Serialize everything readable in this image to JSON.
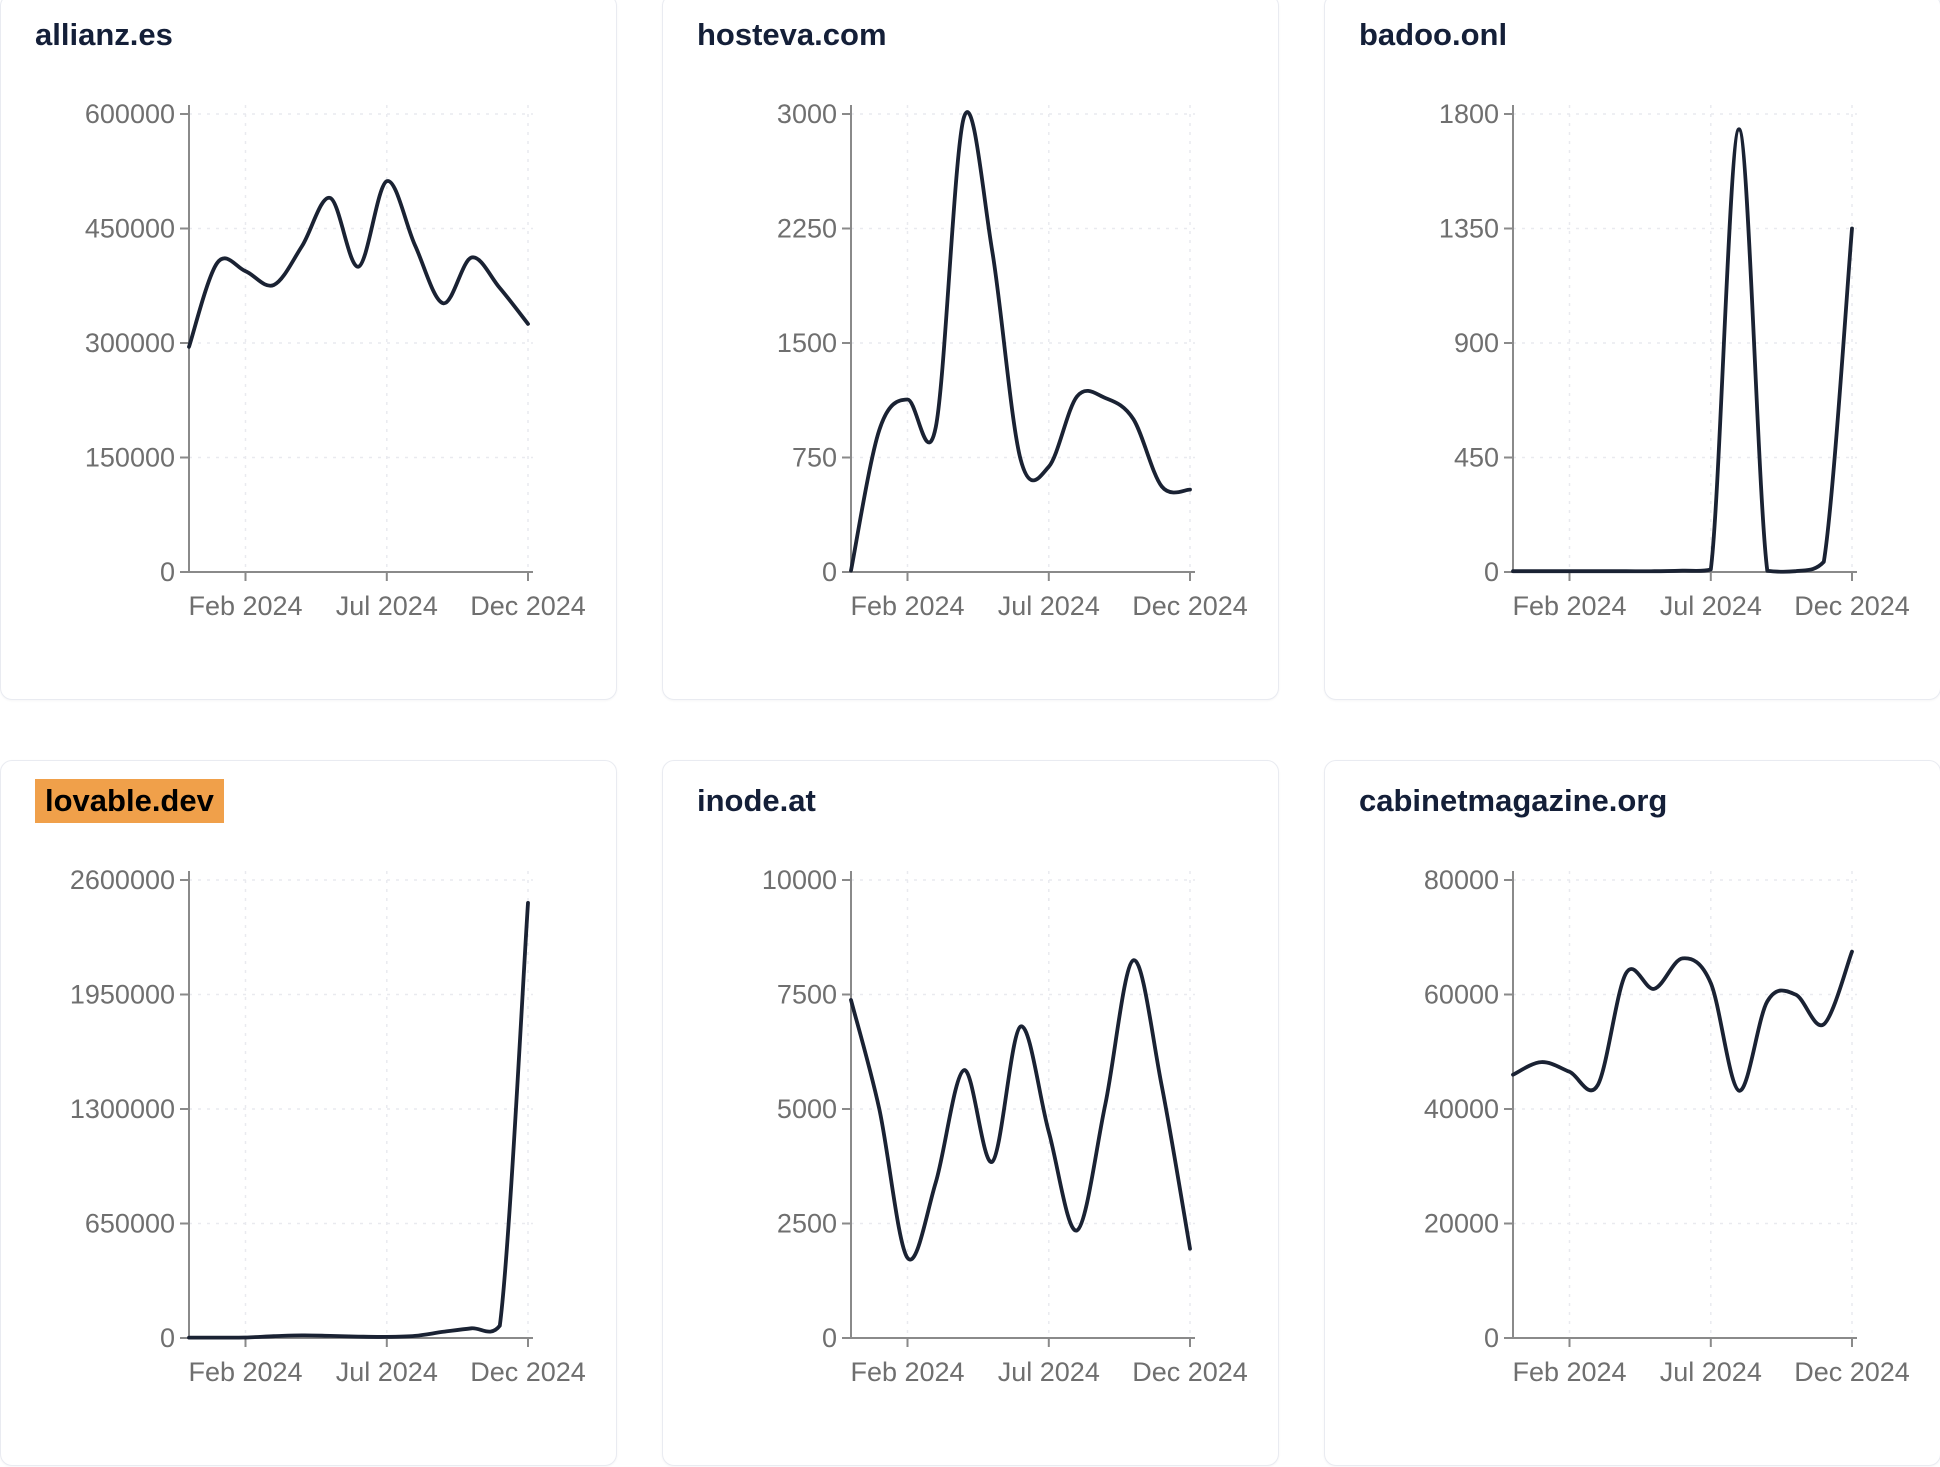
{
  "theme": {
    "background": "#ffffff",
    "card_border": "#e9ebf1",
    "title_color": "#141f38",
    "highlight_color": "#f0a04a",
    "highlight_text_color": "#000000",
    "line_color": "#1a2233",
    "axis_color": "#8a8a8a",
    "tick_label_color": "#6f6f6f",
    "grid_color": "#e9eaef"
  },
  "cards": [
    {
      "title": "allianz.es",
      "highlighted": false
    },
    {
      "title": "hosteva.com",
      "highlighted": false
    },
    {
      "title": "badoo.onl",
      "highlighted": false
    },
    {
      "title": "lovable.dev",
      "highlighted": true
    },
    {
      "title": "inode.at",
      "highlighted": false
    },
    {
      "title": "cabinetmagazine.org",
      "highlighted": false
    }
  ],
  "chart_data": [
    {
      "type": "line",
      "title": "allianz.es",
      "x": [
        "Dec 2023",
        "Jan 2024",
        "Feb 2024",
        "Mar 2024",
        "Apr 2024",
        "May 2024",
        "Jun 2024",
        "Jul 2024",
        "Aug 2024",
        "Sep 2024",
        "Oct 2024",
        "Nov 2024",
        "Dec 2024"
      ],
      "x_ticks": [
        {
          "label": "Feb 2024",
          "index": 2
        },
        {
          "label": "Jul 2024",
          "index": 7
        },
        {
          "label": "Dec 2024",
          "index": 12
        }
      ],
      "y_ticks": [
        0,
        150000,
        300000,
        450000,
        600000
      ],
      "ylim": [
        0,
        600000
      ],
      "grid": true,
      "legend": "none",
      "values": [
        295000,
        405000,
        394000,
        376000,
        427000,
        490000,
        400000,
        512000,
        428000,
        352000,
        412000,
        372000,
        325000
      ]
    },
    {
      "type": "line",
      "title": "hosteva.com",
      "x": [
        "Dec 2023",
        "Jan 2024",
        "Feb 2024",
        "Mar 2024",
        "Apr 2024",
        "May 2024",
        "Jun 2024",
        "Jul 2024",
        "Aug 2024",
        "Sep 2024",
        "Oct 2024",
        "Nov 2024",
        "Dec 2024"
      ],
      "x_ticks": [
        {
          "label": "Feb 2024",
          "index": 2
        },
        {
          "label": "Jul 2024",
          "index": 7
        },
        {
          "label": "Dec 2024",
          "index": 12
        }
      ],
      "y_ticks": [
        0,
        750,
        1500,
        2250,
        3000
      ],
      "ylim": [
        0,
        3000
      ],
      "grid": true,
      "legend": "none",
      "values": [
        10,
        930,
        1130,
        950,
        2980,
        2100,
        740,
        690,
        1150,
        1140,
        1000,
        560,
        540
      ]
    },
    {
      "type": "line",
      "title": "badoo.onl",
      "x": [
        "Dec 2023",
        "Jan 2024",
        "Feb 2024",
        "Mar 2024",
        "Apr 2024",
        "May 2024",
        "Jun 2024",
        "Jul 2024",
        "Aug 2024",
        "Sep 2024",
        "Oct 2024",
        "Nov 2024",
        "Dec 2024"
      ],
      "x_ticks": [
        {
          "label": "Feb 2024",
          "index": 2
        },
        {
          "label": "Jul 2024",
          "index": 7
        },
        {
          "label": "Dec 2024",
          "index": 12
        }
      ],
      "y_ticks": [
        0,
        450,
        900,
        1350,
        1800
      ],
      "ylim": [
        0,
        1800
      ],
      "grid": true,
      "legend": "none",
      "values": [
        3,
        3,
        3,
        3,
        3,
        3,
        5,
        10,
        1740,
        5,
        3,
        40,
        1350
      ]
    },
    {
      "type": "line",
      "title": "lovable.dev",
      "x": [
        "Dec 2023",
        "Jan 2024",
        "Feb 2024",
        "Mar 2024",
        "Apr 2024",
        "May 2024",
        "Jun 2024",
        "Jul 2024",
        "Aug 2024",
        "Sep 2024",
        "Oct 2024",
        "Nov 2024",
        "Dec 2024"
      ],
      "x_ticks": [
        {
          "label": "Feb 2024",
          "index": 2
        },
        {
          "label": "Jul 2024",
          "index": 7
        },
        {
          "label": "Dec 2024",
          "index": 12
        }
      ],
      "y_ticks": [
        0,
        650000,
        1300000,
        1950000,
        2600000
      ],
      "ylim": [
        0,
        2600000
      ],
      "grid": true,
      "legend": "none",
      "values": [
        2000,
        2000,
        3000,
        10000,
        15000,
        12000,
        8000,
        6000,
        12000,
        35000,
        55000,
        70000,
        2470000
      ]
    },
    {
      "type": "line",
      "title": "inode.at",
      "x": [
        "Dec 2023",
        "Jan 2024",
        "Feb 2024",
        "Mar 2024",
        "Apr 2024",
        "May 2024",
        "Jun 2024",
        "Jul 2024",
        "Aug 2024",
        "Sep 2024",
        "Oct 2024",
        "Nov 2024",
        "Dec 2024"
      ],
      "x_ticks": [
        {
          "label": "Feb 2024",
          "index": 2
        },
        {
          "label": "Jul 2024",
          "index": 7
        },
        {
          "label": "Dec 2024",
          "index": 12
        }
      ],
      "y_ticks": [
        0,
        2500,
        5000,
        7500,
        10000
      ],
      "ylim": [
        0,
        10000
      ],
      "grid": true,
      "legend": "none",
      "values": [
        7380,
        5000,
        1750,
        3400,
        5850,
        3850,
        6800,
        4500,
        2350,
        5100,
        8250,
        5500,
        1950
      ]
    },
    {
      "type": "line",
      "title": "cabinetmagazine.org",
      "x": [
        "Dec 2023",
        "Jan 2024",
        "Feb 2024",
        "Mar 2024",
        "Apr 2024",
        "May 2024",
        "Jun 2024",
        "Jul 2024",
        "Aug 2024",
        "Sep 2024",
        "Oct 2024",
        "Nov 2024",
        "Dec 2024"
      ],
      "x_ticks": [
        {
          "label": "Feb 2024",
          "index": 2
        },
        {
          "label": "Jul 2024",
          "index": 7
        },
        {
          "label": "Dec 2024",
          "index": 12
        }
      ],
      "y_ticks": [
        0,
        20000,
        40000,
        60000,
        80000
      ],
      "ylim": [
        0,
        80000
      ],
      "grid": true,
      "legend": "none",
      "values": [
        46000,
        48200,
        46500,
        44200,
        63700,
        61000,
        66300,
        62000,
        43200,
        58800,
        60000,
        54800,
        67500
      ]
    }
  ]
}
